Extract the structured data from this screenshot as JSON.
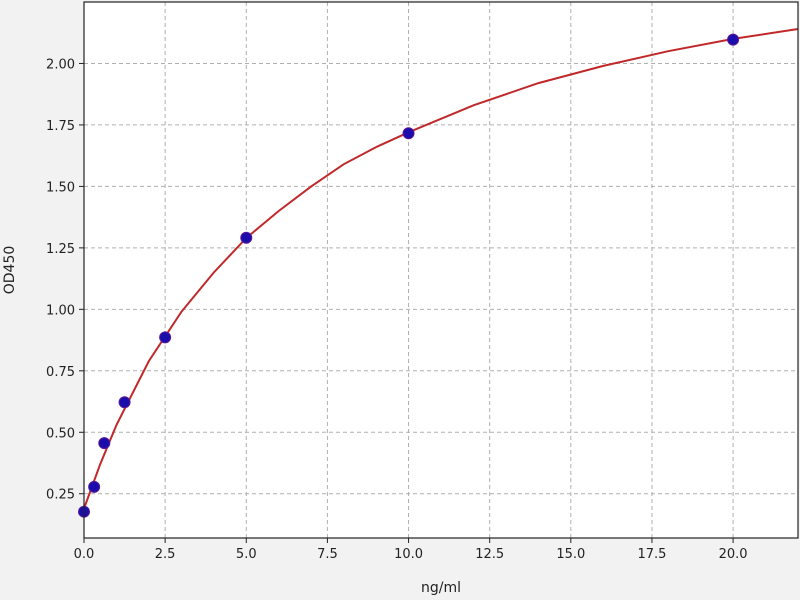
{
  "chart_data": {
    "type": "scatter",
    "title": "",
    "xlabel": "ng/ml",
    "ylabel": "OD450",
    "xlim": [
      0,
      22
    ],
    "ylim": [
      0.07,
      2.25
    ],
    "grid": true,
    "xticks": [
      "0.0",
      "2.5",
      "5.0",
      "7.5",
      "10.0",
      "12.5",
      "15.0",
      "17.5",
      "20.0"
    ],
    "yticks": [
      "0.25",
      "0.50",
      "0.75",
      "1.00",
      "1.25",
      "1.50",
      "1.75",
      "2.00"
    ],
    "colors": {
      "points": "#1a0dab",
      "curve": "#c0282a",
      "grid": "#b0b0b0"
    },
    "series": [
      {
        "type": "scatter",
        "x": [
          0,
          0.3125,
          0.625,
          1.25,
          2.5,
          5,
          10,
          20
        ],
        "y": [
          0.177,
          0.278,
          0.456,
          0.622,
          0.886,
          1.291,
          1.716,
          2.097
        ]
      },
      {
        "type": "line",
        "x": [
          0,
          0.25,
          0.5,
          0.75,
          1,
          1.5,
          2,
          3,
          4,
          5,
          6,
          7,
          8,
          9,
          10,
          12,
          14,
          16,
          18,
          20,
          22
        ],
        "y": [
          0.19,
          0.28,
          0.37,
          0.45,
          0.53,
          0.66,
          0.79,
          0.99,
          1.15,
          1.29,
          1.4,
          1.5,
          1.59,
          1.66,
          1.72,
          1.83,
          1.92,
          1.99,
          2.05,
          2.1,
          2.14
        ]
      }
    ]
  }
}
